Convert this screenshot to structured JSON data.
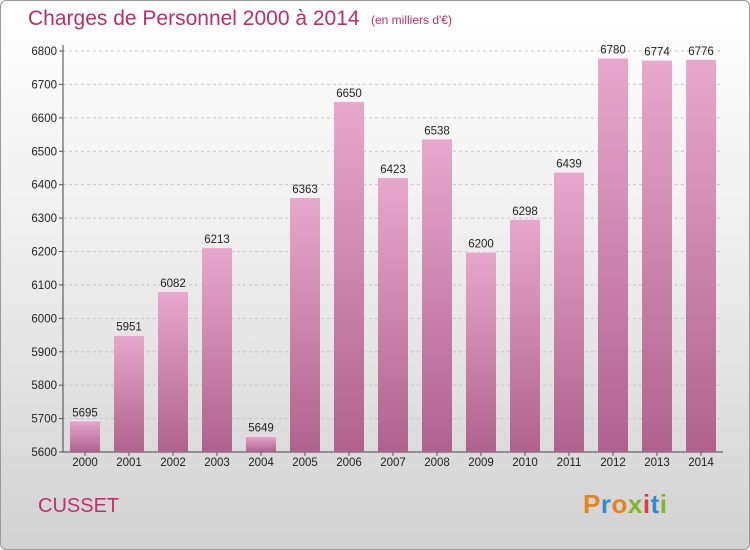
{
  "title": "Charges de Personnel 2000 à 2014",
  "subtitle": "(en milliers d'€)",
  "city": "CUSSET",
  "logo": {
    "chars": [
      "P",
      "r",
      "o",
      "x",
      "i",
      "t",
      "i"
    ],
    "colors": [
      "#e8841f",
      "#2a8fd0",
      "#e8841f",
      "#7ab828",
      "#e23b3b",
      "#2a8fd0",
      "#7ab828"
    ]
  },
  "colors": {
    "title": "#b5306e",
    "bar_top": "#e8a8cc",
    "bar_bottom": "#b0628d"
  },
  "chart_data": {
    "type": "bar",
    "categories": [
      "2000",
      "2001",
      "2002",
      "2003",
      "2004",
      "2005",
      "2006",
      "2007",
      "2008",
      "2009",
      "2010",
      "2011",
      "2012",
      "2013",
      "2014"
    ],
    "values": [
      5695,
      5951,
      6082,
      6213,
      5649,
      6363,
      6650,
      6423,
      6538,
      6200,
      6298,
      6439,
      6780,
      6774,
      6776
    ],
    "ylim": [
      5600,
      6800
    ],
    "yticks": [
      5600,
      5700,
      5800,
      5900,
      6000,
      6100,
      6200,
      6300,
      6400,
      6500,
      6600,
      6700,
      6800
    ],
    "grid": true
  }
}
